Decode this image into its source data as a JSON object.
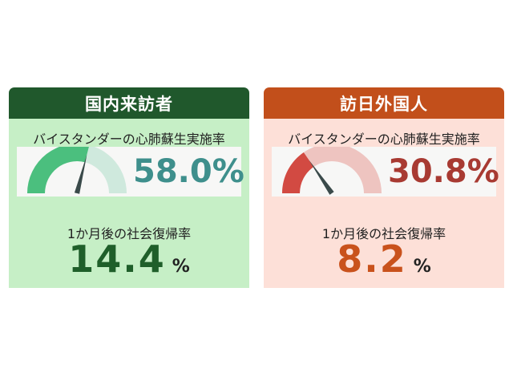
{
  "domestic": {
    "title": "国内来訪者",
    "bystander_label": "バイスタンダーの心肺蘇生実施率",
    "bystander_rate_text": "58.0%",
    "bystander_rate": 58.0,
    "return_label": "1か月後の社会復帰率",
    "return_rate_text": "14.4",
    "unit": "%",
    "colors": {
      "header": "#20582c",
      "panel": "#c6efc6",
      "gauge_fill": "#4bbf7e",
      "gauge_track": "#cfe9dd",
      "percent": "#3e8f8c",
      "rate": "#1f5f2a"
    }
  },
  "foreign": {
    "title": "訪日外国人",
    "bystander_label": "バイスタンダーの心肺蘇生実施率",
    "bystander_rate_text": "30.8%",
    "bystander_rate": 30.8,
    "return_label": "1か月後の社会復帰率",
    "return_rate_text": "8.2",
    "unit": "%",
    "colors": {
      "header": "#c24f1b",
      "panel": "#fde0d8",
      "gauge_fill": "#d24a42",
      "gauge_track": "#eec4c0",
      "percent": "#a83a32",
      "rate": "#c9521c"
    }
  }
}
